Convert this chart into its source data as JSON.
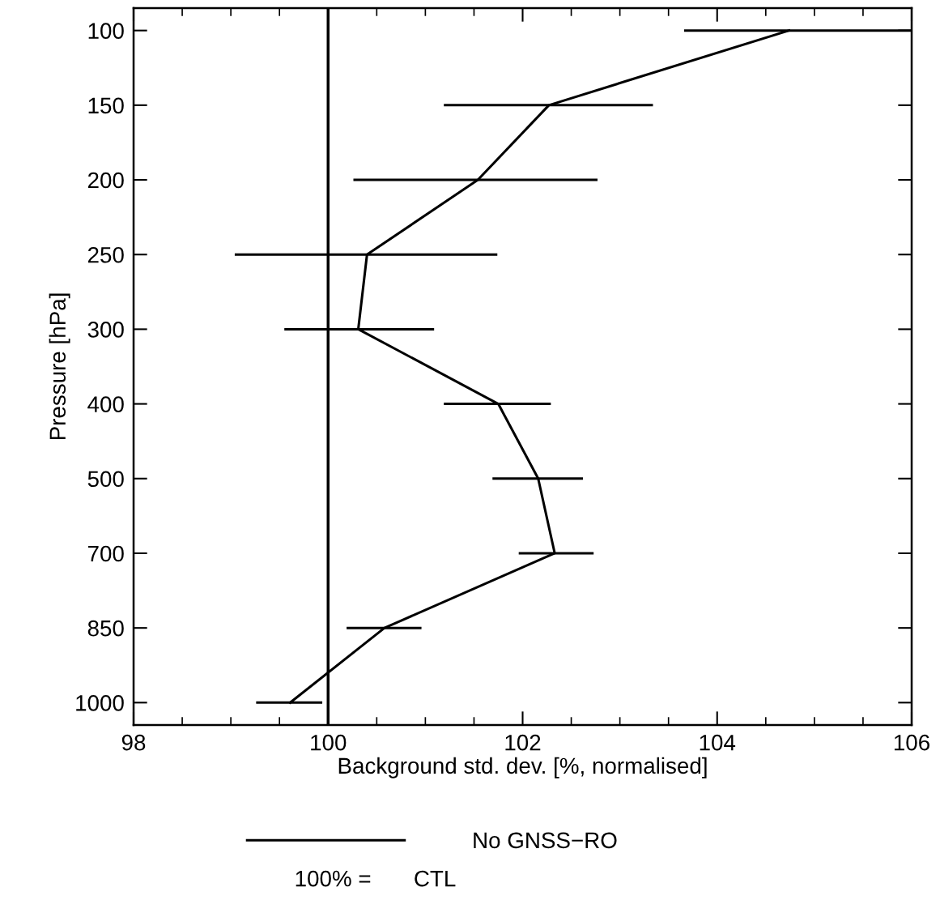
{
  "chart_data": {
    "type": "line",
    "orientation": "horizontal",
    "ylabel": "Pressure [hPa]",
    "xlabel": "Background std. dev. [%, normalised]",
    "categories": [
      "100",
      "150",
      "200",
      "250",
      "300",
      "400",
      "500",
      "700",
      "850",
      "1000"
    ],
    "series": [
      {
        "name": "No GNSS−RO",
        "color": "#000000",
        "values": [
          104.74,
          102.27,
          101.54,
          100.4,
          100.31,
          101.75,
          102.16,
          102.33,
          100.58,
          99.61
        ],
        "errors": [
          [
            103.66,
            106
          ],
          [
            101.19,
            103.34
          ],
          [
            100.26,
            102.77
          ],
          [
            99.04,
            101.74
          ],
          [
            99.55,
            101.09
          ],
          [
            101.19,
            102.29
          ],
          [
            101.69,
            102.62
          ],
          [
            101.96,
            102.73
          ],
          [
            100.19,
            100.96
          ],
          [
            99.26,
            99.94
          ]
        ]
      }
    ],
    "xlim": [
      98,
      106
    ],
    "xticks": [
      98,
      100,
      102,
      104,
      106
    ],
    "ref_lines": [
      {
        "axis": "x",
        "value": 100,
        "color": "#000000"
      }
    ],
    "legend": "bottom",
    "grid": false,
    "marker": "none",
    "line_style": "solid",
    "annotations": [
      "100% =",
      "CTL"
    ]
  }
}
